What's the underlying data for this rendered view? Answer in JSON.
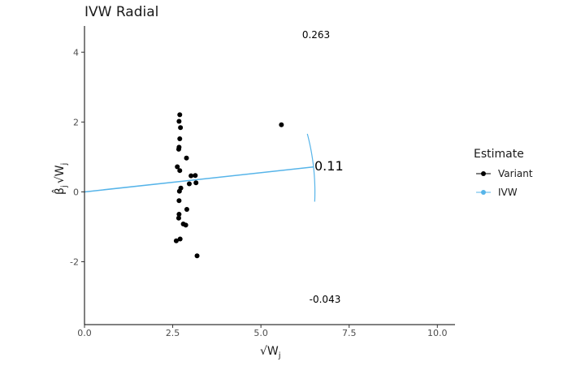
{
  "chart_data": {
    "type": "scatter",
    "title": "IVW Radial",
    "xlabel": "√W",
    "xlabel_sub": "j",
    "ylabel_parts": {
      "beta": "β̂",
      "sub": "j",
      "root": "√W",
      "root_sub": "j"
    },
    "xlim": [
      0,
      10.5
    ],
    "ylim": [
      -3.8,
      4.75
    ],
    "x_ticks": [
      0.0,
      2.5,
      5.0,
      7.5,
      10.0
    ],
    "x_tick_labels": [
      "0.0",
      "2.5",
      "5.0",
      "7.5",
      "10.0"
    ],
    "y_ticks": [
      -2,
      0,
      2,
      4
    ],
    "y_tick_labels": [
      "-2",
      "0",
      "2",
      "4"
    ],
    "grid": false,
    "legend_position": "right",
    "series": [
      {
        "name": "Variant",
        "color": "#000000",
        "points": [
          {
            "x": 2.7,
            "y": 2.21
          },
          {
            "x": 2.68,
            "y": 2.02
          },
          {
            "x": 2.72,
            "y": 1.84
          },
          {
            "x": 2.7,
            "y": 1.52
          },
          {
            "x": 2.68,
            "y": 1.28
          },
          {
            "x": 2.67,
            "y": 1.22
          },
          {
            "x": 2.89,
            "y": 0.97
          },
          {
            "x": 2.63,
            "y": 0.72
          },
          {
            "x": 2.7,
            "y": 0.61
          },
          {
            "x": 3.02,
            "y": 0.46
          },
          {
            "x": 3.14,
            "y": 0.47
          },
          {
            "x": 2.97,
            "y": 0.23
          },
          {
            "x": 3.16,
            "y": 0.26
          },
          {
            "x": 2.73,
            "y": 0.11
          },
          {
            "x": 2.69,
            "y": 0.02
          },
          {
            "x": 2.68,
            "y": -0.25
          },
          {
            "x": 2.9,
            "y": -0.5
          },
          {
            "x": 2.68,
            "y": -0.64
          },
          {
            "x": 2.67,
            "y": -0.75
          },
          {
            "x": 2.8,
            "y": -0.92
          },
          {
            "x": 2.87,
            "y": -0.95
          },
          {
            "x": 2.71,
            "y": -1.35
          },
          {
            "x": 2.6,
            "y": -1.4
          },
          {
            "x": 3.19,
            "y": -1.83
          },
          {
            "x": 5.58,
            "y": 1.92
          }
        ]
      },
      {
        "name": "IVW",
        "color": "#56B4E9",
        "slope": 0.11,
        "line_to_x": 6.5
      }
    ],
    "annotations": {
      "top": "0.263",
      "mid": "0.11",
      "bottom": "-0.043"
    },
    "arc": {
      "radius": 6.53,
      "slope_low": -0.043,
      "slope_high": 0.263
    }
  },
  "legend": {
    "title": "Estimate",
    "items": [
      "Variant",
      "IVW"
    ]
  }
}
